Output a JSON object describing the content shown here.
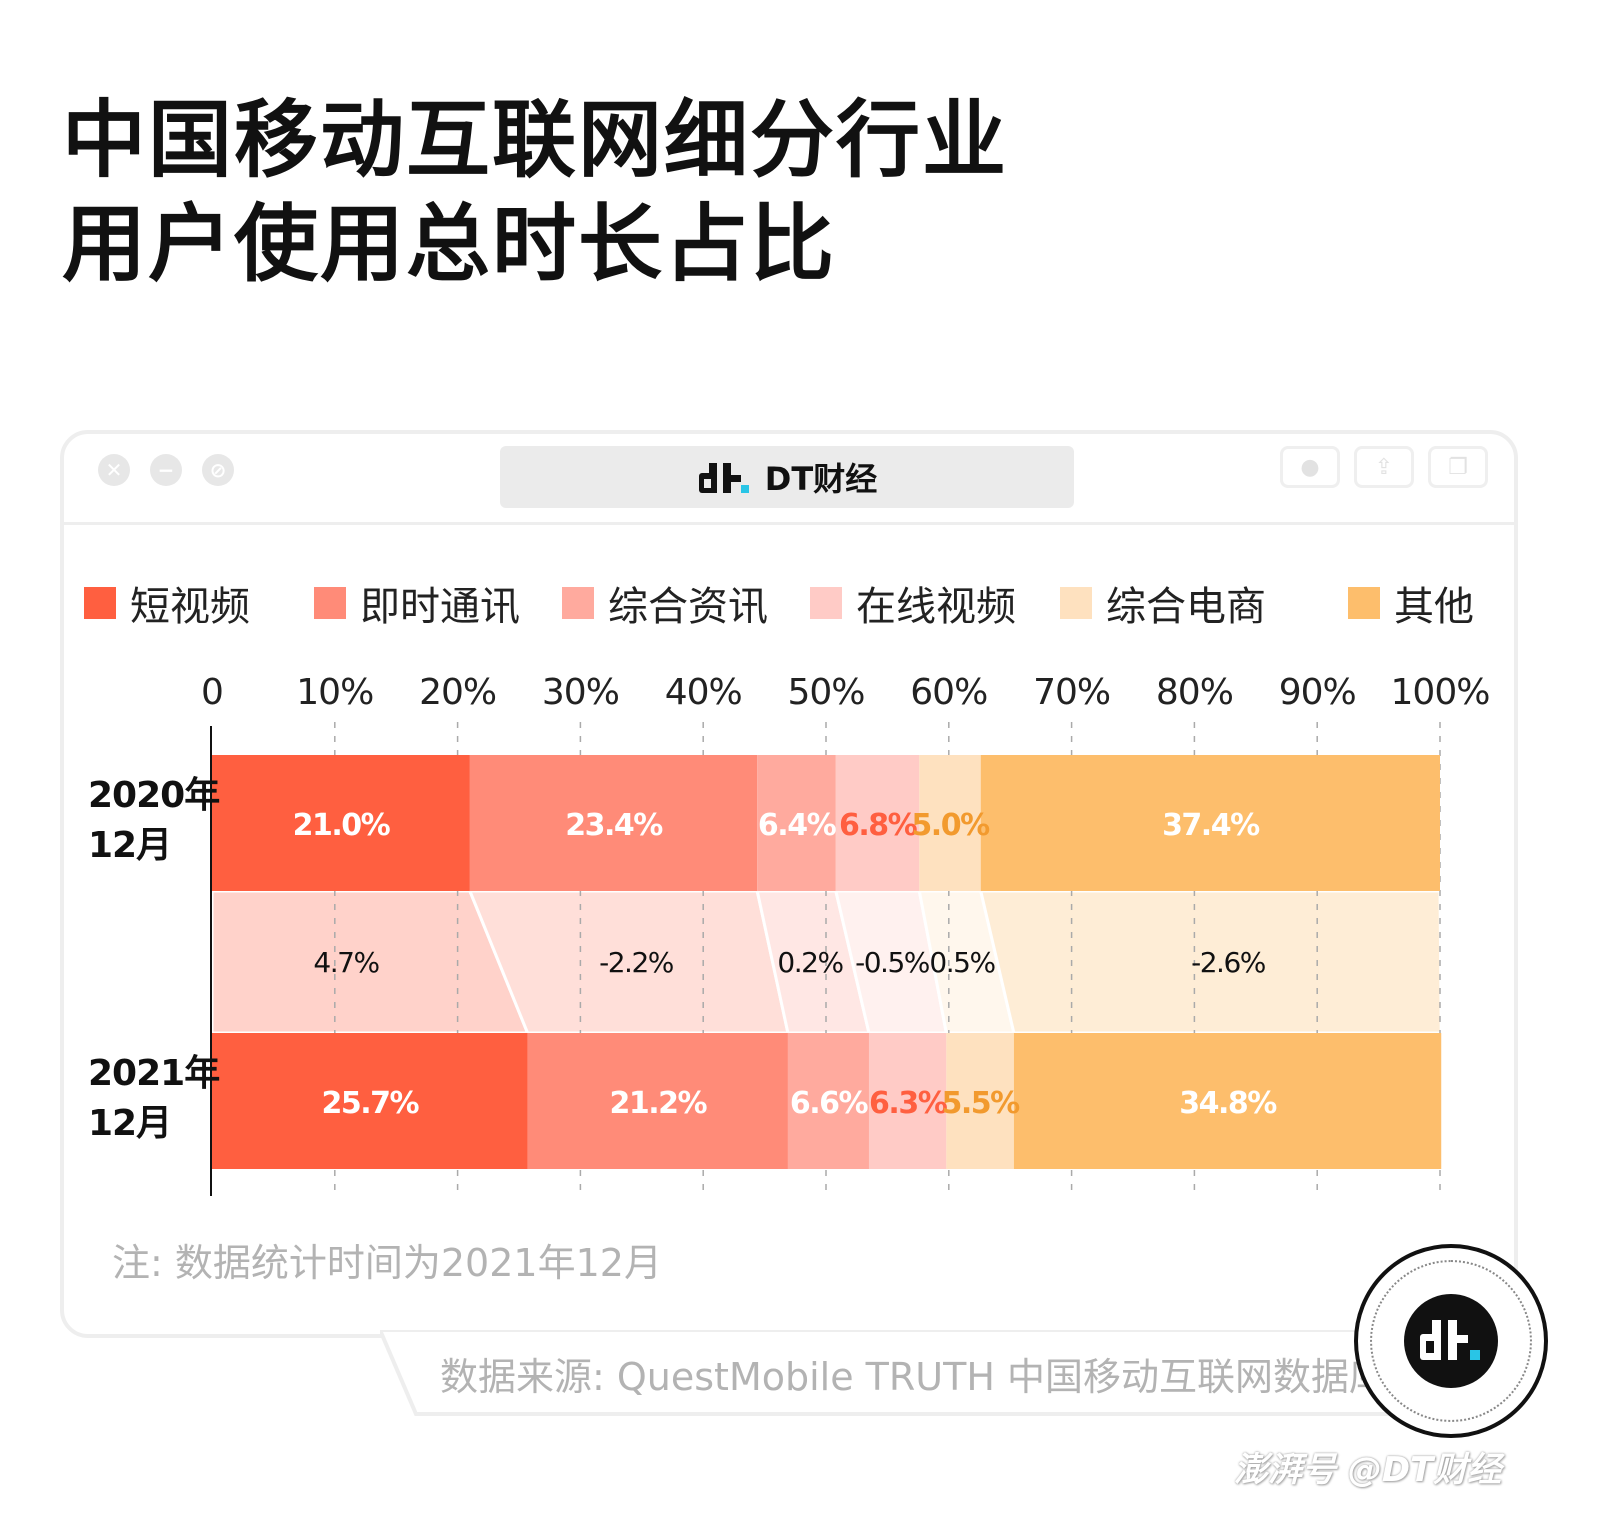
{
  "title_lines": [
    "中国移动互联网细分行业",
    "用户使用总时长占比"
  ],
  "window": {
    "address_text": "DT财经"
  },
  "colors": {
    "短视频": "#ff5f40",
    "即时通讯": "#ff8b78",
    "综合资讯": "#ffaa9e",
    "在线视频": "#ffcbc6",
    "综合电商": "#fee1bf",
    "其他": "#fdbe6c"
  },
  "chart_data": {
    "type": "bar",
    "orientation": "horizontal-stacked-100",
    "title": "中国移动互联网细分行业用户使用总时长占比",
    "categories": [
      "2020年12月",
      "2021年12月"
    ],
    "category_lines": [
      [
        "2020年",
        "12月"
      ],
      [
        "2021年",
        "12月"
      ]
    ],
    "series": [
      {
        "name": "短视频",
        "values": [
          21.0,
          25.7
        ],
        "labels": [
          "21.0%",
          "25.7%"
        ],
        "change": "4.7%"
      },
      {
        "name": "即时通讯",
        "values": [
          23.4,
          21.2
        ],
        "labels": [
          "23.4%",
          "21.2%"
        ],
        "change": "-2.2%"
      },
      {
        "name": "综合资讯",
        "values": [
          6.4,
          6.6
        ],
        "labels": [
          "6.4%",
          "6.6%"
        ],
        "change": "0.2%"
      },
      {
        "name": "在线视频",
        "values": [
          6.8,
          6.3
        ],
        "labels": [
          "6.8%",
          "6.3%"
        ],
        "change": "-0.5%"
      },
      {
        "name": "综合电商",
        "values": [
          5.0,
          5.5
        ],
        "labels": [
          "5.0%",
          "5.5%"
        ],
        "change": "0.5%"
      },
      {
        "name": "其他",
        "values": [
          37.4,
          34.8
        ],
        "labels": [
          "37.4%",
          "34.8%"
        ],
        "change": "-2.6%"
      }
    ],
    "xlim": [
      0,
      100
    ],
    "x_ticks": [
      "0",
      "10%",
      "20%",
      "30%",
      "40%",
      "50%",
      "60%",
      "70%",
      "80%",
      "90%",
      "100%"
    ],
    "legend_position": "top",
    "grid": "vertical dashed"
  },
  "note": "注: 数据统计时间为2021年12月",
  "source": "数据来源: QuestMobile TRUTH 中国移动互联网数据库",
  "watermark": "澎湃号 @DT财经"
}
